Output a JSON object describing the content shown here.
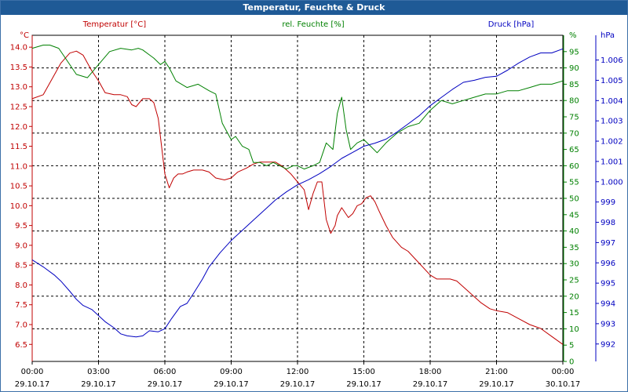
{
  "window": {
    "title": "Temperatur, Feuchte & Druck"
  },
  "colors": {
    "temperature": "#c00000",
    "humidity": "#008000",
    "pressure": "#0000c0",
    "grid": "#000000",
    "title_bg": "#1f5a96"
  },
  "chart_data": {
    "type": "line",
    "title": "Temperatur, Feuchte & Druck",
    "grid": true,
    "legend": "top",
    "x_ticks": [
      {
        "t": 0,
        "time": "00:00",
        "date": "29.10.17"
      },
      {
        "t": 3,
        "time": "03:00",
        "date": "29.10.17"
      },
      {
        "t": 6,
        "time": "06:00",
        "date": "29.10.17"
      },
      {
        "t": 9,
        "time": "09:00",
        "date": "29.10.17"
      },
      {
        "t": 12,
        "time": "12:00",
        "date": "29.10.17"
      },
      {
        "t": 15,
        "time": "15:00",
        "date": "29.10.17"
      },
      {
        "t": 18,
        "time": "18:00",
        "date": "29.10.17"
      },
      {
        "t": 21,
        "time": "21:00",
        "date": "29.10.17"
      },
      {
        "t": 24,
        "time": "00:00",
        "date": "30.10.17"
      }
    ],
    "x_range": [
      0,
      24
    ],
    "axes": {
      "temperature": {
        "label": "Temperatur [°C]",
        "unit": "°C",
        "range": [
          6.07,
          14.3
        ],
        "ticks": [
          "6.5",
          "7.0",
          "7.5",
          "8.0",
          "8.5",
          "9.0",
          "9.5",
          "10.0",
          "10.5",
          "11.0",
          "11.5",
          "12.0",
          "12.5",
          "13.0",
          "13.5",
          "14.0"
        ]
      },
      "humidity": {
        "label": "rel. Feuchte [%]",
        "unit": "%",
        "range": [
          0,
          100
        ],
        "ticks": [
          "0",
          "5",
          "10",
          "15",
          "20",
          "25",
          "30",
          "35",
          "40",
          "45",
          "50",
          "55",
          "60",
          "65",
          "70",
          "75",
          "80",
          "85",
          "90",
          "95"
        ]
      },
      "pressure": {
        "label": "Druck [hPa]",
        "unit": "hPa",
        "range": [
          991.14,
          1007.22
        ],
        "ticks": [
          "992",
          "993",
          "994",
          "995",
          "996",
          "997",
          "998",
          "999",
          "1.000",
          "1.001",
          "1.002",
          "1.003",
          "1.004",
          "1.005",
          "1.006"
        ]
      }
    },
    "series": [
      {
        "name": "Temperatur [°C]",
        "axis": "temperature",
        "x": [
          0,
          0.5,
          1,
          1.3,
          1.7,
          2,
          2.3,
          2.5,
          2.7,
          3,
          3.3,
          3.7,
          4,
          4.3,
          4.5,
          4.7,
          5,
          5.3,
          5.5,
          5.7,
          6,
          6.2,
          6.4,
          6.6,
          6.8,
          7,
          7.3,
          7.7,
          8,
          8.3,
          8.7,
          9,
          9.3,
          9.7,
          10,
          10.3,
          10.7,
          11,
          11.3,
          11.7,
          12,
          12.3,
          12.5,
          12.7,
          12.9,
          13.1,
          13.3,
          13.5,
          13.7,
          13.8,
          14,
          14.3,
          14.5,
          14.7,
          14.9,
          15.1,
          15.3,
          15.5,
          15.7,
          16,
          16.3,
          16.7,
          17,
          17.5,
          18,
          18.3,
          18.6,
          18.9,
          19.2,
          19.6,
          20,
          20.3,
          20.7,
          21,
          21.5,
          22,
          22.5,
          23,
          23.5,
          24
        ],
        "y": [
          12.7,
          12.8,
          13.3,
          13.6,
          13.85,
          13.9,
          13.8,
          13.6,
          13.4,
          13.15,
          12.85,
          12.8,
          12.8,
          12.75,
          12.55,
          12.5,
          12.7,
          12.7,
          12.6,
          12.2,
          10.8,
          10.45,
          10.7,
          10.8,
          10.8,
          10.85,
          10.9,
          10.9,
          10.85,
          10.7,
          10.65,
          10.7,
          10.85,
          10.95,
          11.05,
          11.1,
          11.1,
          11.1,
          11.0,
          10.8,
          10.6,
          10.4,
          9.9,
          10.3,
          10.6,
          10.6,
          9.65,
          9.3,
          9.5,
          9.75,
          9.95,
          9.7,
          9.8,
          10.0,
          10.05,
          10.2,
          10.25,
          10.1,
          9.85,
          9.5,
          9.2,
          8.95,
          8.85,
          8.55,
          8.25,
          8.15,
          8.15,
          8.15,
          8.1,
          7.9,
          7.7,
          7.55,
          7.4,
          7.35,
          7.3,
          7.15,
          7.0,
          6.9,
          6.7,
          6.5
        ]
      },
      {
        "name": "rel. Feuchte [%]",
        "axis": "humidity",
        "x": [
          0,
          0.5,
          0.8,
          1.2,
          1.5,
          2,
          2.5,
          3,
          3.5,
          4,
          4.5,
          4.8,
          5,
          5.3,
          5.5,
          5.8,
          6,
          6.2,
          6.5,
          7,
          7.5,
          8,
          8.3,
          8.6,
          9,
          9.2,
          9.5,
          9.8,
          10,
          10.3,
          10.6,
          10.9,
          11.2,
          11.5,
          11.8,
          12,
          12.3,
          12.7,
          13,
          13.3,
          13.6,
          13.8,
          14,
          14.2,
          14.4,
          14.7,
          15,
          15.3,
          15.6,
          16,
          16.5,
          17,
          17.5,
          18,
          18.5,
          19,
          19.5,
          20,
          20.5,
          21,
          21.5,
          22,
          22.5,
          23,
          23.5,
          24
        ],
        "y": [
          96,
          97,
          97,
          96,
          93,
          88,
          87,
          91,
          95,
          96,
          95.5,
          96,
          95.5,
          94,
          93,
          91,
          92,
          90,
          86,
          84,
          85,
          83,
          82,
          73,
          68,
          69,
          66,
          65,
          61,
          61,
          60,
          61,
          60,
          59,
          60,
          60,
          59,
          60,
          61,
          67,
          65,
          76,
          81,
          71,
          65,
          67,
          68,
          66,
          64,
          67,
          70,
          72,
          73,
          77,
          80,
          79,
          80,
          81,
          82,
          82,
          83,
          83,
          84,
          85,
          85,
          86
        ]
      },
      {
        "name": "Druck [hPa]",
        "axis": "pressure",
        "x": [
          0,
          0.5,
          1,
          1.3,
          1.7,
          2,
          2.3,
          2.7,
          3,
          3.3,
          3.7,
          4,
          4.3,
          4.7,
          5,
          5.3,
          5.7,
          6,
          6.3,
          6.7,
          7,
          7.3,
          7.7,
          8,
          8.5,
          9,
          9.5,
          10,
          10.5,
          11,
          11.5,
          12,
          12.5,
          13,
          13.5,
          14,
          14.5,
          15,
          15.5,
          16,
          16.5,
          17,
          17.5,
          18,
          18.5,
          19,
          19.5,
          20,
          20.5,
          21,
          21.5,
          22,
          22.5,
          23,
          23.5,
          24
        ],
        "y": [
          996.15,
          995.8,
          995.4,
          995.1,
          994.6,
          994.2,
          993.9,
          993.7,
          993.4,
          993.1,
          992.8,
          992.5,
          992.4,
          992.35,
          992.4,
          992.65,
          992.6,
          992.75,
          993.25,
          993.85,
          994.0,
          994.5,
          995.2,
          995.8,
          996.5,
          997.1,
          997.6,
          998.1,
          998.6,
          999.1,
          999.5,
          999.85,
          1000.1,
          1000.4,
          1000.75,
          1001.15,
          1001.45,
          1001.75,
          1001.9,
          1002.1,
          1002.45,
          1002.85,
          1003.25,
          1003.75,
          1004.15,
          1004.55,
          1004.9,
          1005.0,
          1005.15,
          1005.2,
          1005.5,
          1005.85,
          1006.15,
          1006.35,
          1006.35,
          1006.55
        ]
      }
    ]
  }
}
